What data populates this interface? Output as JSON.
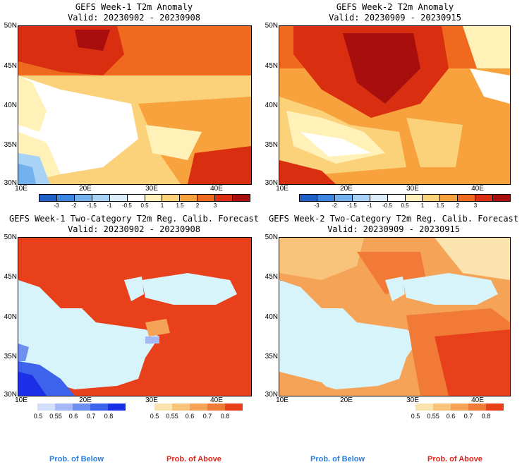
{
  "panels": [
    {
      "title1": "GEFS Week-1 T2m Anomaly",
      "title2": "Valid: 20230902 - 20230908"
    },
    {
      "title1": "GEFS Week-2 T2m Anomaly",
      "title2": "Valid: 20230909 - 20230915"
    },
    {
      "title1": "GEFS Week-1 Two-Category T2m Reg. Calib. Forecast",
      "title2": "Valid: 20230902 - 20230908"
    },
    {
      "title1": "GEFS Week-2 Two-Category T2m Reg. Calib. Forecast",
      "title2": "Valid: 20230909 - 20230915"
    }
  ],
  "lat_ticks": [
    "50N",
    "45N",
    "40N",
    "35N",
    "30N"
  ],
  "lon_ticks": [
    "10E",
    "20E",
    "30E",
    "40E"
  ],
  "anomaly_colorbar": {
    "labels": [
      "-3",
      "-2",
      "-1.5",
      "-1",
      "-0.5",
      "0.5",
      "1",
      "1.5",
      "2",
      "3"
    ],
    "colors": [
      "#1f5fc8",
      "#3a86e0",
      "#73b0ee",
      "#a8d2f6",
      "#dcedfb",
      "#ffffff",
      "#fff1b8",
      "#fbd27a",
      "#f7a23c",
      "#ef6a1f",
      "#d92e0f",
      "#a80e0e"
    ]
  },
  "below_colorbar": {
    "labels": [
      "0.5",
      "0.55",
      "0.6",
      "0.7",
      "0.8"
    ],
    "colors": [
      "#d2defa",
      "#a3b8f4",
      "#6f8ff0",
      "#3d63ec",
      "#1a2fe6"
    ]
  },
  "above_colorbar": {
    "labels": [
      "0.5",
      "0.55",
      "0.6",
      "0.7",
      "0.8"
    ],
    "colors": [
      "#fbe3b0",
      "#f8c47c",
      "#f5a356",
      "#f07a36",
      "#e9401c"
    ]
  },
  "legend": {
    "below": "Prob. of Below",
    "above": "Prob. of Above"
  },
  "colors": {
    "sea_prob": "#d8f4fb",
    "below_text": "#2a7fe0",
    "above_text": "#e0241a"
  }
}
